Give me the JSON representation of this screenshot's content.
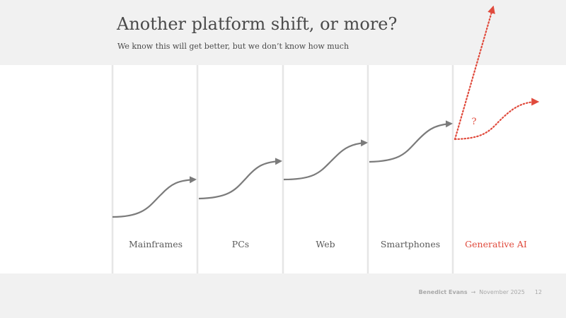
{
  "slide": {
    "title": "Another platform shift, or more?",
    "subtitle": "We know this will get better, but we don’t know how much"
  },
  "eras": [
    {
      "label": "Mainframes"
    },
    {
      "label": "PCs"
    },
    {
      "label": "Web"
    },
    {
      "label": "Smartphones"
    },
    {
      "label": "Generative AI"
    }
  ],
  "future_mark": "?",
  "colors": {
    "curve": "#7b7b7b",
    "highlight": "#e04a3c",
    "divider": "#e6e6e6",
    "band": "#f1f1f1"
  },
  "footer": {
    "author": "Benedict Evans",
    "arrow": "→",
    "date": "November 2025",
    "page": "12"
  }
}
